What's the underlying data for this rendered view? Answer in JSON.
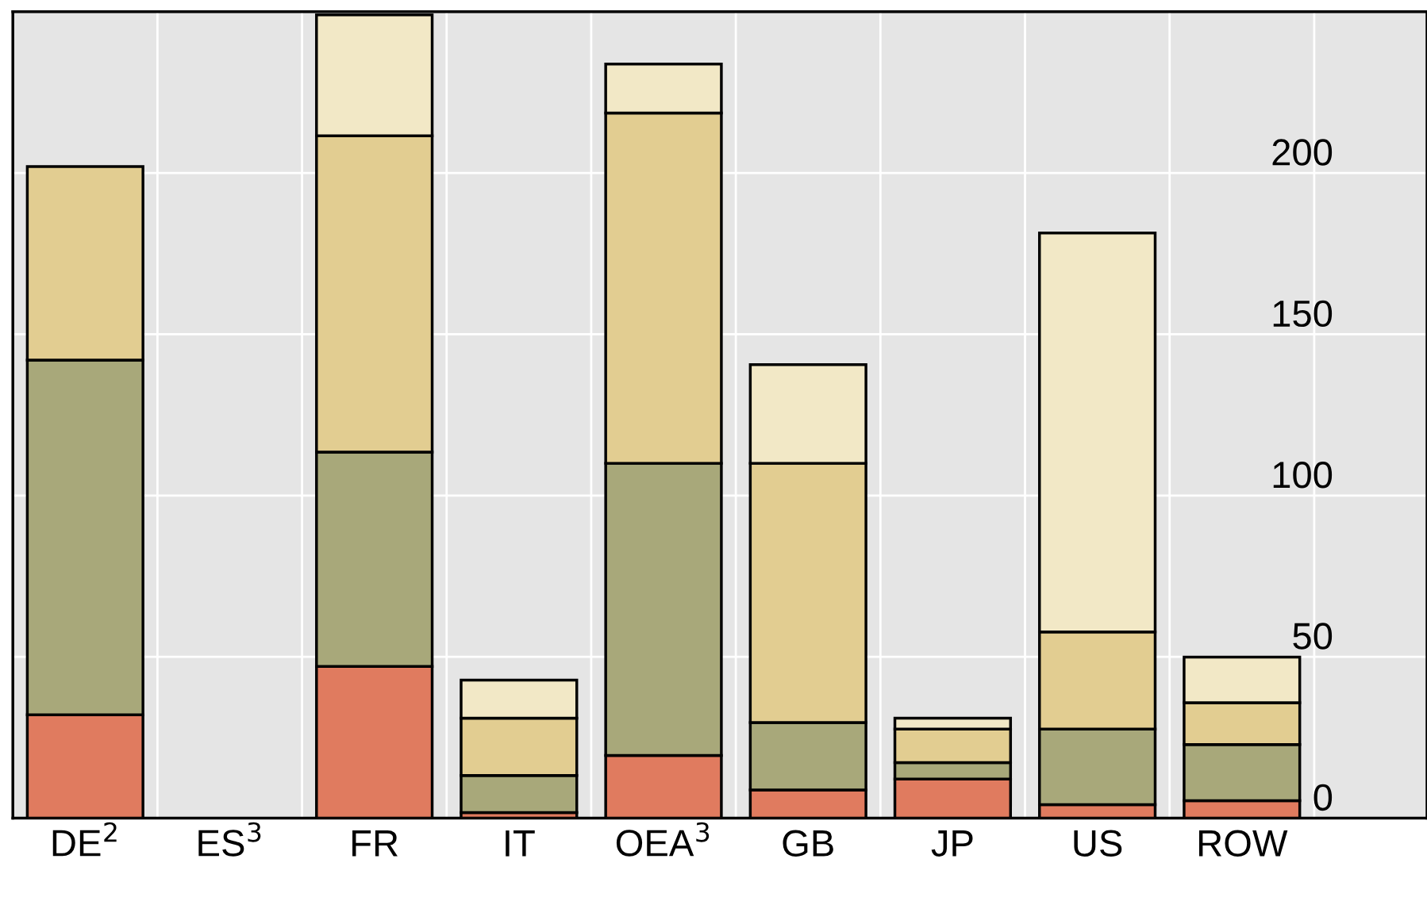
{
  "chart_data": {
    "type": "bar",
    "stacked": true,
    "categories": [
      "DE$^{2}$",
      "ES$^{3}$",
      "FR",
      "IT",
      "OEA$^{3}$",
      "GB",
      "JP",
      "US",
      "ROW"
    ],
    "series": [
      {
        "color": "#e07b5f",
        "values": [
          32,
          null,
          47,
          1.7,
          19.4,
          8.7,
          12.1,
          4.2,
          5.4
        ]
      },
      {
        "color": "#a8a87a",
        "values": [
          110,
          null,
          66.5,
          11.5,
          90.6,
          20.9,
          5.1,
          23.4,
          17.4
        ]
      },
      {
        "color": "#e2cd91",
        "values": [
          60,
          null,
          98,
          17.8,
          108.6,
          80.4,
          10.4,
          30.1,
          13
        ]
      },
      {
        "color": "#f2e8c6",
        "values": [
          null,
          null,
          37.5,
          11.8,
          15.2,
          30.6,
          3.4,
          123.7,
          14.1
        ]
      }
    ],
    "ylim": [
      0,
      250
    ],
    "yticks": [
      0,
      50,
      100,
      150,
      200
    ],
    "grid": true,
    "legend": false
  }
}
